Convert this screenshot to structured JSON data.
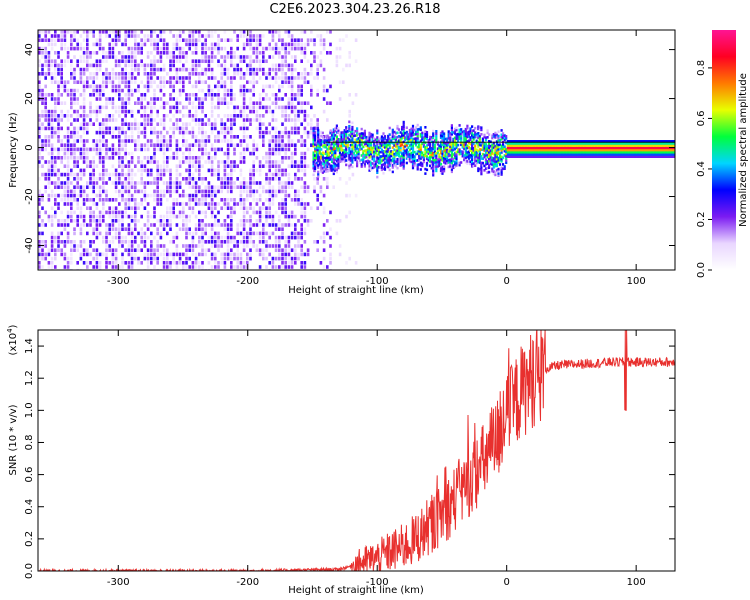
{
  "title": "C2E6.2023.304.23.26.R18",
  "chart_data": [
    {
      "type": "heatmap",
      "xlabel": "Height of straight line (km)",
      "ylabel": "Frequency (Hz)",
      "xlim": [
        -362,
        130
      ],
      "ylim": [
        -50,
        48
      ],
      "xticks": [
        -300,
        -200,
        -100,
        0,
        100
      ],
      "yticks": [
        -40,
        -20,
        0,
        20,
        40
      ],
      "colorbar": {
        "label": "Normalized spectral amplitude",
        "range": [
          0.0,
          0.95
        ],
        "ticks": [
          "0.0",
          "0.2",
          "0.4",
          "0.6",
          "0.8"
        ],
        "colors": [
          "#ffffff",
          "#e9d6ff",
          "#7b1bf2",
          "#0000ff",
          "#00d5ff",
          "#00ff3c",
          "#e8ff00",
          "#ff7a00",
          "#ff0022",
          "#ff1493"
        ]
      },
      "regions": [
        {
          "x": [
            -362,
            -135
          ],
          "freq": [
            -50,
            48
          ],
          "amplitude_range": [
            0.0,
            0.3
          ],
          "description": "noise"
        },
        {
          "x": [
            -150,
            130
          ],
          "freq": [
            -3,
            3
          ],
          "amplitude_range": [
            0.3,
            0.9
          ],
          "description": "echo"
        }
      ],
      "grid": false
    },
    {
      "type": "line",
      "xlabel": "Height of straight line (km)",
      "ylabel": "SNR (10 * v/v)",
      "yscale_label": "(x10",
      "yscale_exp": "4",
      "yscale_close": ")",
      "xlim": [
        -362,
        130
      ],
      "ylim": [
        0,
        1.5
      ],
      "xticks": [
        -300,
        -200,
        -100,
        0,
        100
      ],
      "yticks": [
        "0.0",
        "0.2",
        "0.4",
        "0.6",
        "0.8",
        "1.0",
        "1.2",
        "1.4"
      ],
      "series": [
        {
          "color": "#e8302e",
          "x": [
            -362,
            -300,
            -200,
            -130,
            -120,
            -110,
            -100,
            -90,
            -80,
            -70,
            -60,
            -50,
            -40,
            -30,
            -20,
            -10,
            0,
            10,
            20,
            30,
            40,
            60,
            80,
            100,
            130
          ],
          "y": [
            0.0,
            0.0,
            0.0,
            0.01,
            0.03,
            0.06,
            0.08,
            0.12,
            0.15,
            0.2,
            0.28,
            0.35,
            0.45,
            0.55,
            0.65,
            0.78,
            0.95,
            1.1,
            1.2,
            1.26,
            1.28,
            1.29,
            1.3,
            1.3,
            1.3
          ]
        }
      ],
      "grid": false
    }
  ]
}
